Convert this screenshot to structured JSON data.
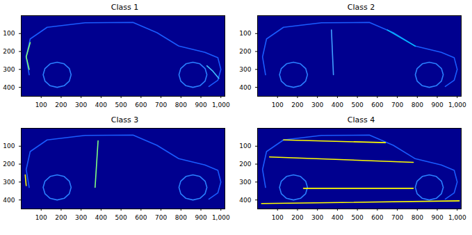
{
  "chart_data": [
    {
      "type": "image",
      "title": "Class 1",
      "color": "#00008f",
      "xlim": [
        0,
        1020
      ],
      "ylim": [
        0,
        450
      ],
      "xticks": [
        100,
        200,
        300,
        400,
        500,
        600,
        700,
        800,
        900,
        1000
      ],
      "yticks": [
        100,
        200,
        300,
        400
      ],
      "series": [
        {
          "color": "#1a5cff",
          "x": [
            40,
            25,
            45,
            130,
            320,
            560,
            680,
            790,
            920,
            985,
            1000,
            985,
            940
          ],
          "values": [
            330,
            230,
            130,
            65,
            40,
            38,
            95,
            170,
            205,
            235,
            300,
            360,
            395
          ]
        },
        {
          "color": "#2a7fff",
          "x": [
            250,
            241,
            215,
            180,
            145,
            119,
            110,
            119,
            145,
            180,
            215,
            241,
            250
          ],
          "values": [
            330,
            365,
            391,
            400,
            391,
            365,
            330,
            295,
            269,
            260,
            269,
            295,
            330
          ]
        },
        {
          "color": "#2a7fff",
          "x": [
            930,
            921,
            895,
            860,
            825,
            799,
            790,
            799,
            825,
            860,
            895,
            921,
            930
          ],
          "values": [
            330,
            365,
            391,
            400,
            391,
            365,
            330,
            295,
            269,
            260,
            269,
            295,
            330
          ]
        },
        {
          "color": "#80ff80",
          "x": [
            40,
            25,
            45
          ],
          "values": [
            300,
            230,
            150
          ]
        },
        {
          "color": "#40c0ff",
          "x": [
            930,
            960,
            990
          ],
          "values": [
            280,
            310,
            350
          ]
        }
      ]
    },
    {
      "type": "image",
      "title": "Class 2",
      "color": "#00008f",
      "xlim": [
        0,
        1020
      ],
      "ylim": [
        0,
        450
      ],
      "xticks": [
        100,
        200,
        300,
        400,
        500,
        600,
        700,
        800,
        900,
        1000
      ],
      "yticks": [
        100,
        200,
        300,
        400
      ],
      "series": [
        {
          "color": "#1a5cff",
          "x": [
            40,
            25,
            45,
            130,
            320,
            560,
            680,
            790,
            920,
            985,
            1000,
            985,
            940
          ],
          "values": [
            330,
            230,
            130,
            65,
            40,
            38,
            95,
            170,
            205,
            235,
            300,
            360,
            395
          ]
        },
        {
          "color": "#2a7fff",
          "x": [
            250,
            241,
            215,
            180,
            145,
            119,
            110,
            119,
            145,
            180,
            215,
            241,
            250
          ],
          "values": [
            330,
            365,
            391,
            400,
            391,
            365,
            330,
            295,
            269,
            260,
            269,
            295,
            330
          ]
        },
        {
          "color": "#2a7fff",
          "x": [
            930,
            921,
            895,
            860,
            825,
            799,
            790,
            799,
            825,
            860,
            895,
            921,
            930
          ],
          "values": [
            330,
            365,
            391,
            400,
            391,
            365,
            330,
            295,
            269,
            260,
            269,
            295,
            330
          ]
        },
        {
          "color": "#00c0ff",
          "x": [
            650,
            790
          ],
          "values": [
            80,
            170
          ]
        },
        {
          "color": "#40a0ff",
          "x": [
            370,
            380
          ],
          "values": [
            80,
            330
          ]
        }
      ]
    },
    {
      "type": "image",
      "title": "Class 3",
      "color": "#00008f",
      "xlim": [
        0,
        1020
      ],
      "ylim": [
        0,
        450
      ],
      "xticks": [
        100,
        200,
        300,
        400,
        500,
        600,
        700,
        800,
        900,
        1000
      ],
      "yticks": [
        100,
        200,
        300,
        400
      ],
      "series": [
        {
          "color": "#1a5cff",
          "x": [
            40,
            25,
            45,
            130,
            320,
            560,
            680,
            790,
            920,
            985,
            1000,
            985,
            940
          ],
          "values": [
            330,
            230,
            130,
            65,
            40,
            38,
            95,
            170,
            205,
            235,
            300,
            360,
            395
          ]
        },
        {
          "color": "#2a7fff",
          "x": [
            250,
            241,
            215,
            180,
            145,
            119,
            110,
            119,
            145,
            180,
            215,
            241,
            250
          ],
          "values": [
            330,
            365,
            391,
            400,
            391,
            365,
            330,
            295,
            269,
            260,
            269,
            295,
            330
          ]
        },
        {
          "color": "#2a7fff",
          "x": [
            930,
            921,
            895,
            860,
            825,
            799,
            790,
            799,
            825,
            860,
            895,
            921,
            930
          ],
          "values": [
            330,
            365,
            391,
            400,
            391,
            365,
            330,
            295,
            269,
            260,
            269,
            295,
            330
          ]
        },
        {
          "color": "#80ff80",
          "x": [
            385,
            370
          ],
          "values": [
            70,
            330
          ]
        },
        {
          "color": "#ffff00",
          "x": [
            20,
            25
          ],
          "values": [
            260,
            320
          ]
        }
      ]
    },
    {
      "type": "image",
      "title": "Class 4",
      "color": "#00008f",
      "xlim": [
        0,
        1020
      ],
      "ylim": [
        0,
        450
      ],
      "xticks": [
        100,
        200,
        300,
        400,
        500,
        600,
        700,
        800,
        900,
        1000
      ],
      "yticks": [
        100,
        200,
        300,
        400
      ],
      "series": [
        {
          "color": "#1a5cff",
          "x": [
            40,
            25,
            45,
            130,
            320,
            560,
            680,
            790,
            920,
            985,
            1000,
            985,
            940
          ],
          "values": [
            330,
            230,
            130,
            65,
            40,
            38,
            95,
            170,
            205,
            235,
            300,
            360,
            395
          ]
        },
        {
          "color": "#2a7fff",
          "x": [
            250,
            241,
            215,
            180,
            145,
            119,
            110,
            119,
            145,
            180,
            215,
            241,
            250
          ],
          "values": [
            330,
            365,
            391,
            400,
            391,
            365,
            330,
            295,
            269,
            260,
            269,
            295,
            330
          ]
        },
        {
          "color": "#2a7fff",
          "x": [
            930,
            921,
            895,
            860,
            825,
            799,
            790,
            799,
            825,
            860,
            895,
            921,
            930
          ],
          "values": [
            330,
            365,
            391,
            400,
            391,
            365,
            330,
            295,
            269,
            260,
            269,
            295,
            330
          ]
        },
        {
          "color": "#ffff00",
          "x": [
            130,
            640
          ],
          "values": [
            65,
            80
          ]
        },
        {
          "color": "#ffff00",
          "x": [
            60,
            780
          ],
          "values": [
            160,
            190
          ]
        },
        {
          "color": "#ffff00",
          "x": [
            230,
            780
          ],
          "values": [
            335,
            335
          ]
        },
        {
          "color": "#ffff00",
          "x": [
            20,
            1010
          ],
          "values": [
            420,
            405
          ]
        }
      ]
    }
  ]
}
